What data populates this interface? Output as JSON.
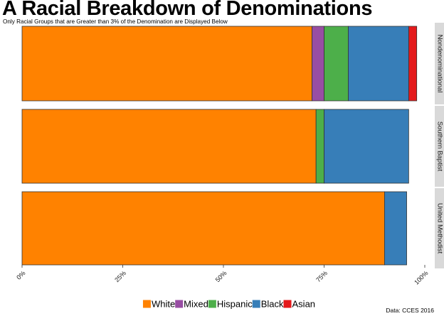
{
  "chart_data": {
    "type": "bar",
    "orientation": "horizontal",
    "stacked": true,
    "title": "A Racial Breakdown of Denominations",
    "subtitle": "Only Racial Groups that are Greater than 3% of the Denomination are Displayed Below",
    "caption": "Data: CCES 2016",
    "facets": [
      "Nondenominational",
      "Southern Baptist",
      "United Methodist"
    ],
    "series": [
      {
        "name": "White",
        "color": "#FF8200",
        "values": [
          0.72,
          0.73,
          0.9
        ]
      },
      {
        "name": "Mixed",
        "color": "#984EA3",
        "values": [
          0.03,
          0.0,
          0.0
        ]
      },
      {
        "name": "Hispanic",
        "color": "#4DAF4A",
        "values": [
          0.06,
          0.02,
          0.0
        ]
      },
      {
        "name": "Black",
        "color": "#377EB8",
        "values": [
          0.15,
          0.21,
          0.055
        ]
      },
      {
        "name": "Asian",
        "color": "#E41A1C",
        "values": [
          0.02,
          0.0,
          0.0
        ]
      }
    ],
    "xlim": [
      0,
      1
    ],
    "x_ticks": [
      0,
      0.25,
      0.5,
      0.75,
      1.0
    ],
    "x_tick_labels": [
      "0%",
      "25%",
      "50%",
      "75%",
      "100%"
    ],
    "xlabel": "",
    "ylabel": "",
    "grid": false,
    "legend_position": "bottom"
  }
}
